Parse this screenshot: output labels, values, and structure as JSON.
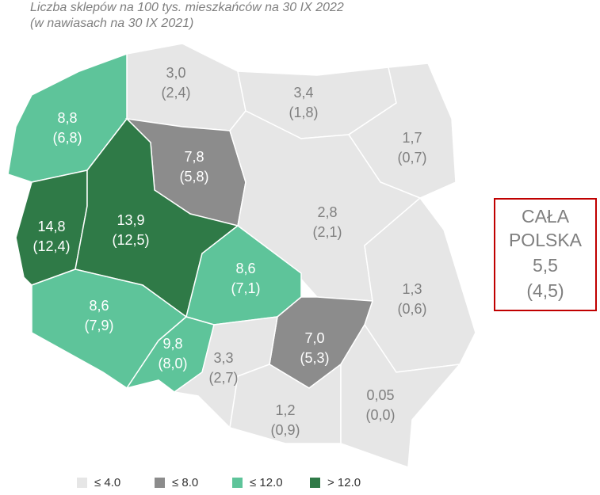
{
  "title": "Liczba sklepów na 100 tys. mieszkańców na 30 IX 2022",
  "subtitle": "(w nawiasach na 30 IX 2021)",
  "legend": [
    {
      "label": "≤ 4.0",
      "color": "#e6e6e6"
    },
    {
      "label": "≤ 8.0",
      "color": "#8c8c8c"
    },
    {
      "label": "≤ 12.0",
      "color": "#5ec49a"
    },
    {
      "label": "> 12.0",
      "color": "#2f7a47"
    }
  ],
  "regions": [
    {
      "value": "3,0",
      "previous": "(2,4)",
      "class": 0
    },
    {
      "value": "3,4",
      "previous": "(1,8)",
      "class": 0
    },
    {
      "value": "1,7",
      "previous": "(0,7)",
      "class": 0
    },
    {
      "value": "8,8",
      "previous": "(6,8)",
      "class": 2
    },
    {
      "value": "7,8",
      "previous": "(5,8)",
      "class": 1
    },
    {
      "value": "2,8",
      "previous": "(2,1)",
      "class": 0
    },
    {
      "value": "14,8",
      "previous": "(12,4)",
      "class": 3
    },
    {
      "value": "13,9",
      "previous": "(12,5)",
      "class": 3
    },
    {
      "value": "8,6",
      "previous": "(7,1)",
      "class": 2
    },
    {
      "value": "1,3",
      "previous": "(0,6)",
      "class": 0
    },
    {
      "value": "8,6",
      "previous": "(7,9)",
      "class": 2
    },
    {
      "value": "9,8",
      "previous": "(8,0)",
      "class": 2
    },
    {
      "value": "7,0",
      "previous": "(5,3)",
      "class": 1
    },
    {
      "value": "3,3",
      "previous": "(2,7)",
      "class": 0
    },
    {
      "value": "1,2",
      "previous": "(0,9)",
      "class": 0
    },
    {
      "value": "0,05",
      "previous": "(0,0)",
      "class": 0
    }
  ],
  "total": {
    "line1": "CAŁA",
    "line2": "POLSKA",
    "value": "5,5",
    "previous": "(4,5)"
  }
}
